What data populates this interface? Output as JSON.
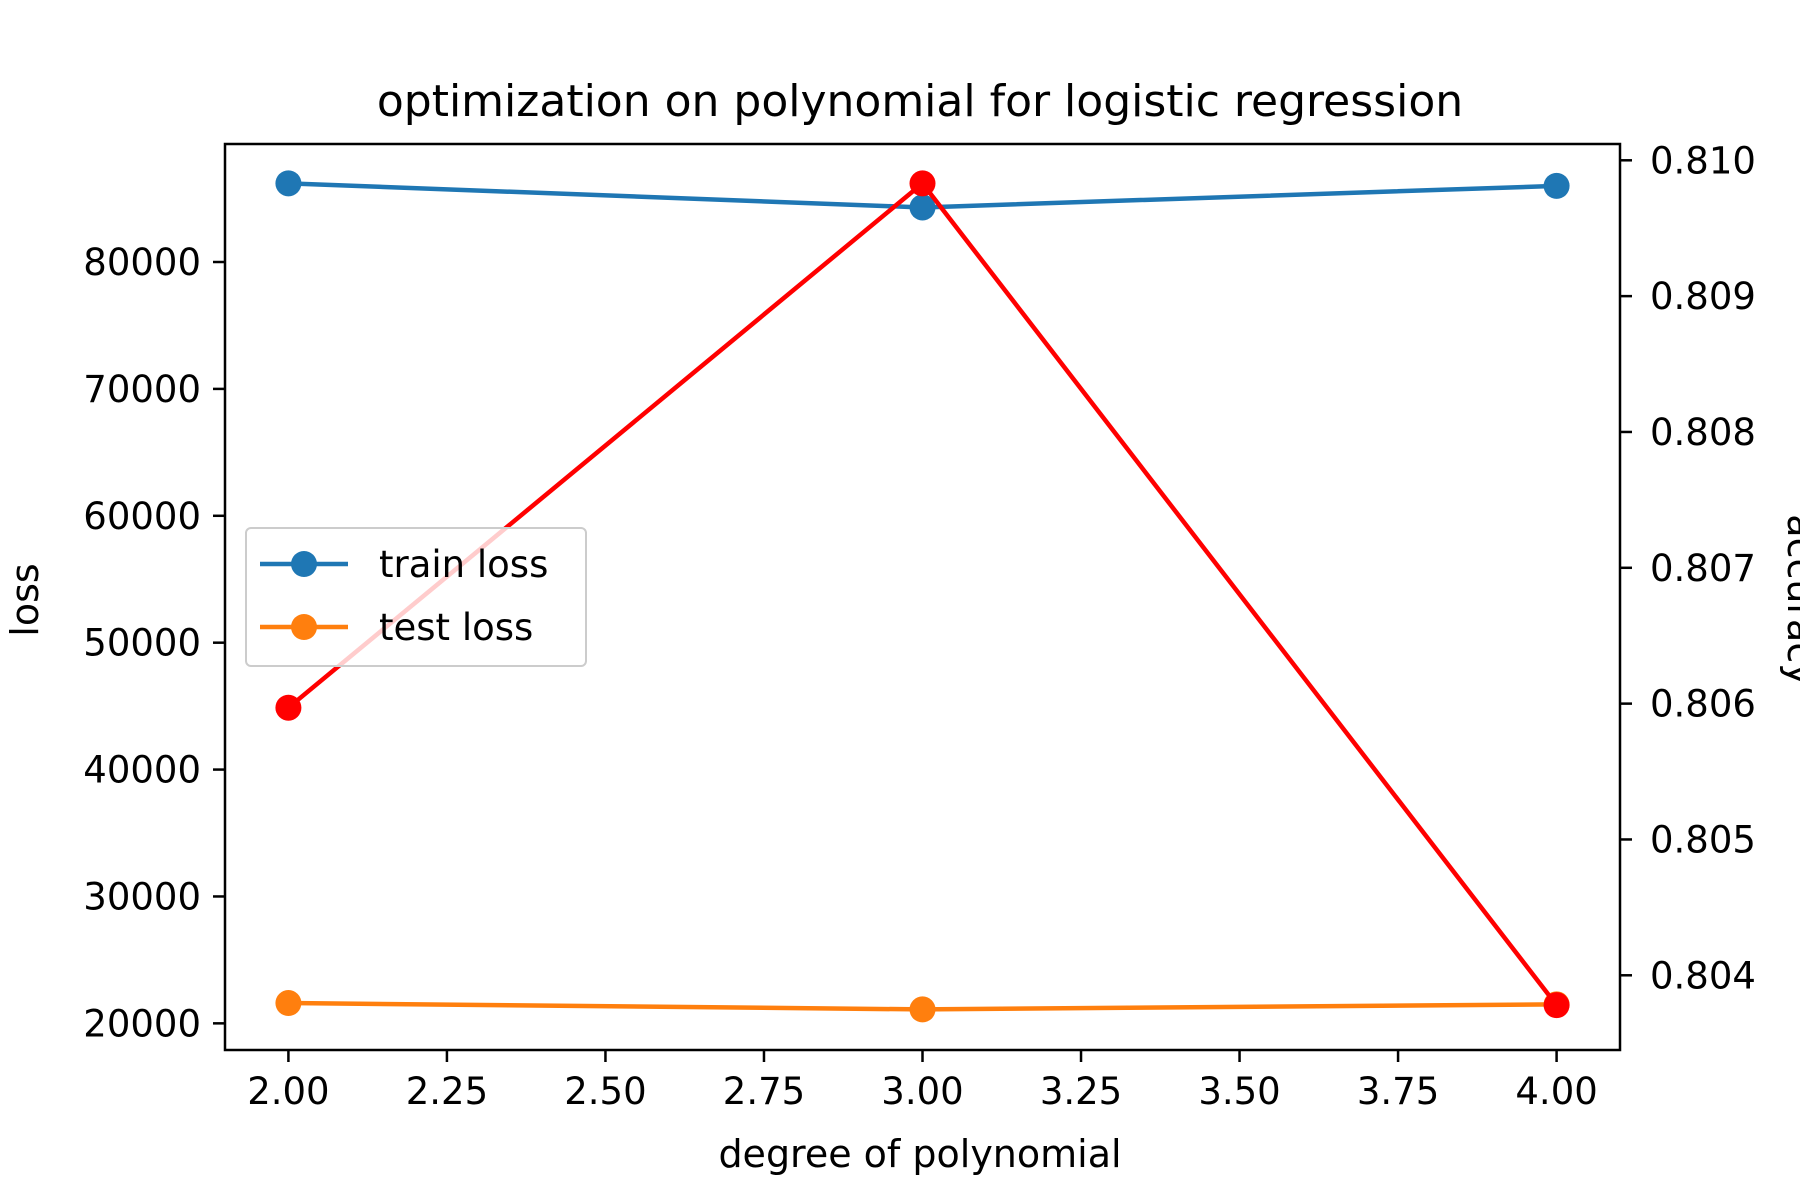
{
  "chart_data": {
    "type": "line",
    "title": "optimization on polynomial for logistic regression",
    "xlabel": "degree of polynomial",
    "ylabel": "loss",
    "y2label": "accuracy",
    "x": [
      2,
      3,
      4
    ],
    "xlim": [
      1.9,
      4.1
    ],
    "xticks": [
      2.0,
      2.25,
      2.5,
      2.75,
      3.0,
      3.25,
      3.5,
      3.75,
      4.0
    ],
    "xtick_labels": [
      "2.00",
      "2.25",
      "2.50",
      "2.75",
      "3.00",
      "3.25",
      "3.50",
      "3.75",
      "4.00"
    ],
    "ylim": [
      17900,
      89300
    ],
    "yticks": [
      20000,
      30000,
      40000,
      50000,
      60000,
      70000,
      80000
    ],
    "ytick_labels": [
      "20000",
      "30000",
      "40000",
      "50000",
      "60000",
      "70000",
      "80000"
    ],
    "y2lim": [
      0.80345,
      0.81012
    ],
    "y2ticks": [
      0.804,
      0.805,
      0.806,
      0.807,
      0.808,
      0.809,
      0.81
    ],
    "y2tick_labels": [
      "0.804",
      "0.805",
      "0.806",
      "0.807",
      "0.808",
      "0.809",
      "0.810"
    ],
    "series": [
      {
        "name": "train loss",
        "axis": "left",
        "color": "#1f77b4",
        "values": [
          86200,
          84300,
          86000
        ]
      },
      {
        "name": "test loss",
        "axis": "left",
        "color": "#ff7f0e",
        "values": [
          21600,
          21100,
          21500
        ]
      },
      {
        "axis": "right",
        "color": "#ff0000",
        "values": [
          0.80597,
          0.80983,
          0.80378
        ]
      }
    ],
    "legend": {
      "position": "center-left",
      "entries": [
        "train loss",
        "test loss"
      ]
    },
    "y2label_color": "#cc0000",
    "grid": false
  }
}
